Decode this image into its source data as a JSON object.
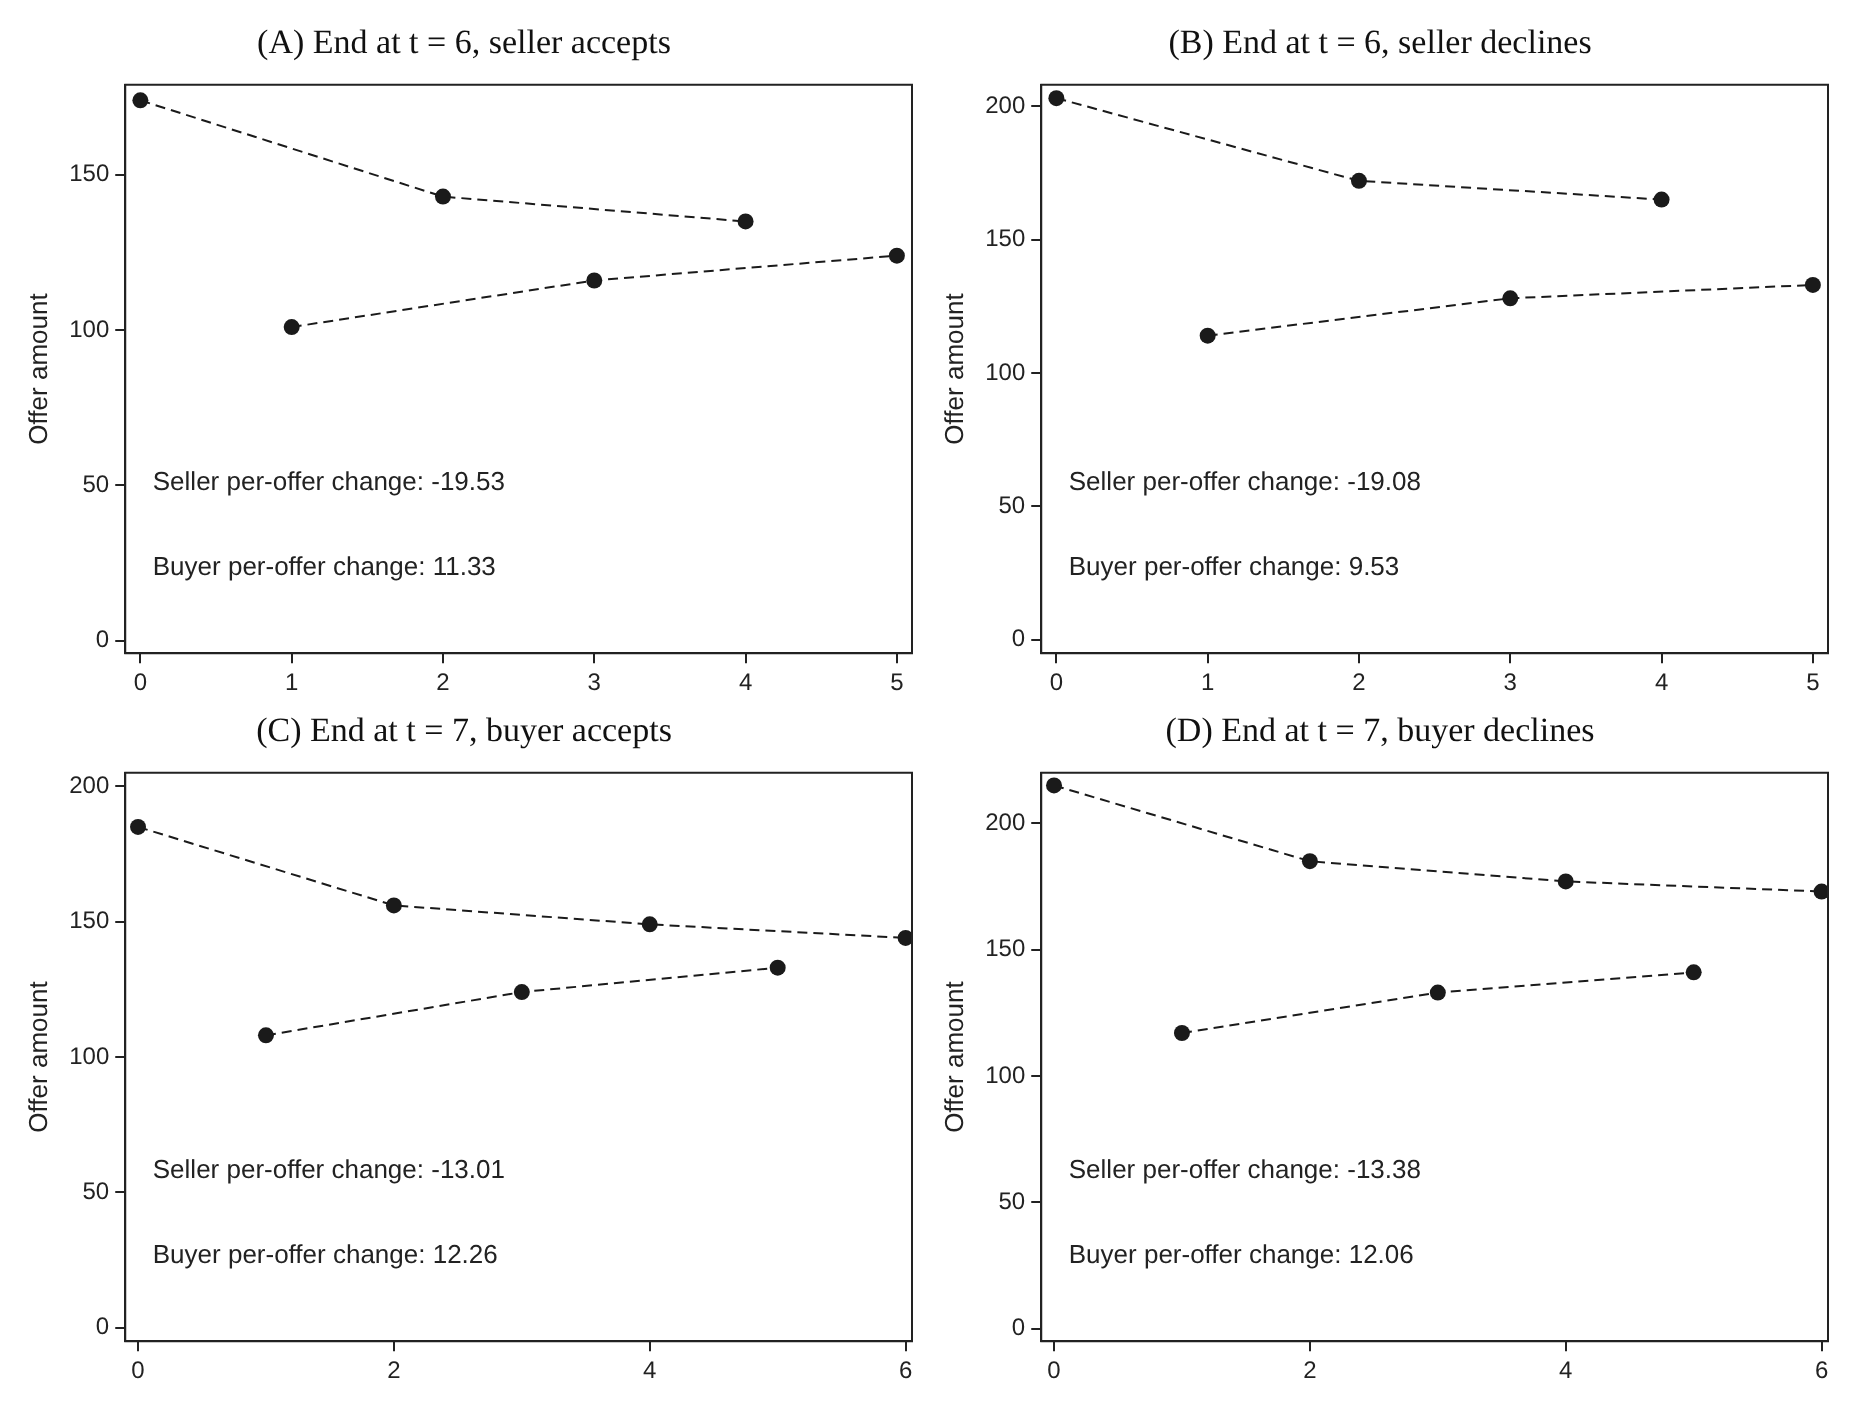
{
  "chart_data": [
    {
      "type": "line",
      "title": "(A) End at t = 6, seller accepts",
      "ylabel": "Offer amount",
      "xlim": [
        -0.1,
        5.1
      ],
      "xticks": [
        0,
        1,
        2,
        3,
        4,
        5
      ],
      "ylim": [
        -4,
        179
      ],
      "yticks": [
        0,
        50,
        100,
        150
      ],
      "grid": false,
      "legend": false,
      "marker": "circle",
      "line_style": "dashed",
      "series": [
        {
          "color": "#1a1a1a",
          "x": [
            0,
            2,
            4
          ],
          "values": [
            174,
            143,
            135
          ]
        },
        {
          "color": "#1a1a1a",
          "x": [
            1,
            3,
            5
          ],
          "values": [
            101,
            116,
            124
          ]
        }
      ],
      "annotations": [
        "Seller per-offer change: -19.53",
        "Buyer per-offer change: 11.33"
      ]
    },
    {
      "type": "line",
      "title": "(B) End at t = 6, seller declines",
      "ylabel": "Offer amount",
      "xlim": [
        -0.1,
        5.1
      ],
      "xticks": [
        0,
        1,
        2,
        3,
        4,
        5
      ],
      "ylim": [
        -5,
        208
      ],
      "yticks": [
        0,
        50,
        100,
        150,
        200
      ],
      "grid": false,
      "legend": false,
      "marker": "circle",
      "line_style": "dashed",
      "series": [
        {
          "color": "#1a1a1a",
          "x": [
            0,
            2,
            4
          ],
          "values": [
            203,
            172,
            165
          ]
        },
        {
          "color": "#1a1a1a",
          "x": [
            1,
            3,
            5
          ],
          "values": [
            114,
            128,
            133
          ]
        }
      ],
      "annotations": [
        "Seller per-offer change: -19.08",
        "Buyer per-offer change: 9.53"
      ]
    },
    {
      "type": "line",
      "title": "(C) End at t = 7, buyer accepts",
      "ylabel": "Offer amount",
      "xlim": [
        -0.1,
        6.05
      ],
      "xticks": [
        0,
        2,
        4,
        6
      ],
      "ylim": [
        -5,
        205
      ],
      "yticks": [
        0,
        50,
        100,
        150,
        200
      ],
      "grid": false,
      "legend": false,
      "marker": "circle",
      "line_style": "dashed",
      "series": [
        {
          "color": "#1a1a1a",
          "x": [
            0,
            2,
            4,
            6
          ],
          "values": [
            185,
            156,
            149,
            144
          ]
        },
        {
          "color": "#1a1a1a",
          "x": [
            1,
            3,
            5
          ],
          "values": [
            108,
            124,
            133
          ]
        }
      ],
      "annotations": [
        "Seller per-offer change: -13.01",
        "Buyer per-offer change: 12.26"
      ]
    },
    {
      "type": "line",
      "title": "(D) End at t = 7, buyer declines",
      "ylabel": "Offer amount",
      "xlim": [
        -0.1,
        6.05
      ],
      "xticks": [
        0,
        2,
        4,
        6
      ],
      "ylim": [
        -5,
        220
      ],
      "yticks": [
        0,
        50,
        100,
        150,
        200
      ],
      "grid": false,
      "legend": false,
      "marker": "circle",
      "line_style": "dashed",
      "series": [
        {
          "color": "#1a1a1a",
          "x": [
            0,
            2,
            4,
            6
          ],
          "values": [
            215,
            185,
            177,
            173
          ]
        },
        {
          "color": "#1a1a1a",
          "x": [
            1,
            3,
            5
          ],
          "values": [
            117,
            133,
            141
          ]
        }
      ],
      "annotations": [
        "Seller per-offer change: -13.38",
        "Buyer per-offer change: 12.06"
      ]
    }
  ]
}
